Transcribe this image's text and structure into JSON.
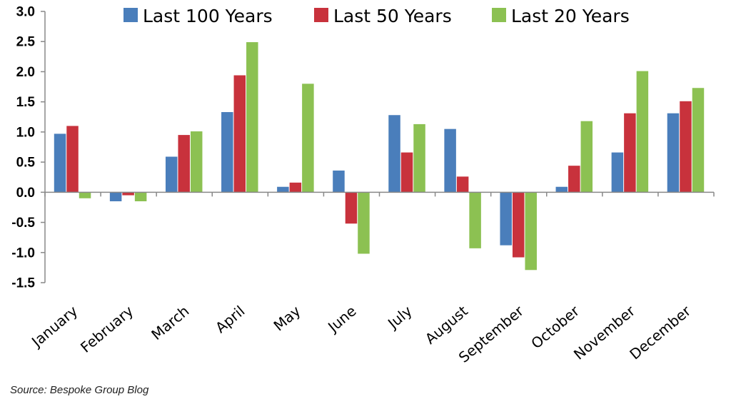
{
  "chart_data": {
    "type": "bar",
    "categories": [
      "January",
      "February",
      "March",
      "April",
      "May",
      "June",
      "July",
      "August",
      "September",
      "October",
      "November",
      "December"
    ],
    "series": [
      {
        "name": "Last 100 Years",
        "color": "#4a7ebb",
        "values": [
          0.97,
          -0.15,
          0.59,
          1.33,
          0.09,
          0.36,
          1.28,
          1.05,
          -0.88,
          0.09,
          0.66,
          1.31
        ]
      },
      {
        "name": "Last 50 Years",
        "color": "#c8323c",
        "values": [
          1.1,
          -0.05,
          0.95,
          1.94,
          0.16,
          -0.52,
          0.66,
          0.26,
          -1.08,
          0.44,
          1.31,
          1.51
        ]
      },
      {
        "name": "Last 20 Years",
        "color": "#8cc152",
        "values": [
          -0.1,
          -0.15,
          1.01,
          2.49,
          1.8,
          -1.02,
          1.13,
          -0.93,
          -1.29,
          1.18,
          2.01,
          1.73
        ]
      }
    ],
    "ylim": [
      -1.5,
      3.0
    ],
    "yticks": [
      "3.0",
      "2.5",
      "2.0",
      "1.5",
      "1.0",
      "0.5",
      "0.0",
      "-0.5",
      "-1.0",
      "-1.5"
    ],
    "ytick_values": [
      3.0,
      2.5,
      2.0,
      1.5,
      1.0,
      0.5,
      0.0,
      -0.5,
      -1.0,
      -1.5
    ],
    "legend_position": "top",
    "grid": false
  },
  "source": "Source: Bespoke Group Blog"
}
